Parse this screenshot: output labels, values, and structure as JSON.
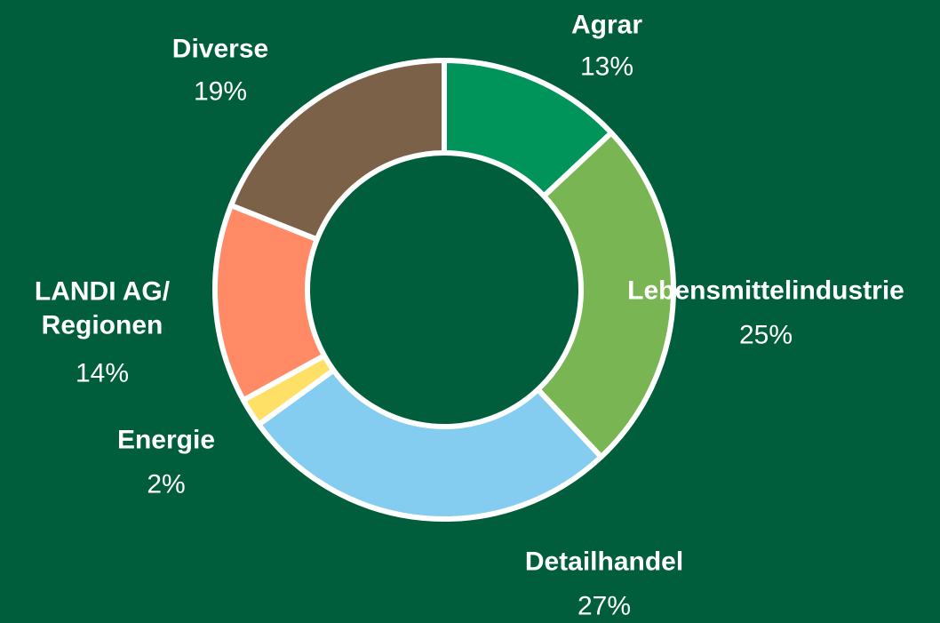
{
  "chart_data": {
    "type": "donut",
    "categories": [
      "Agrar",
      "Lebensmittelindustrie",
      "Detailhandel",
      "Energie",
      "LANDI AG/\nRegionen",
      "Diverse"
    ],
    "values": [
      13,
      25,
      27,
      2,
      14,
      19
    ],
    "value_labels": [
      "13%",
      "25%",
      "27%",
      "2%",
      "14%",
      "19%"
    ],
    "colors": [
      "#00935a",
      "#7ab553",
      "#85cdf0",
      "#ffe066",
      "#ff8a65",
      "#7b6148"
    ]
  }
}
